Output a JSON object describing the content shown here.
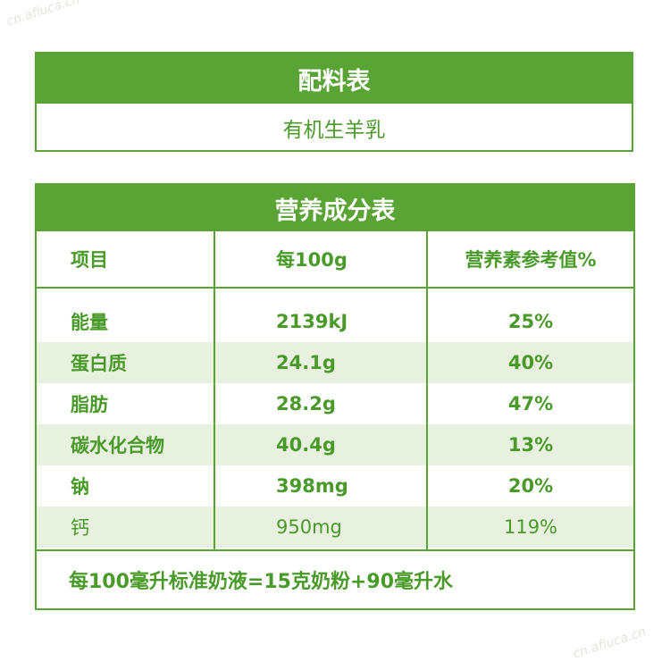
{
  "ingredients": {
    "title": "配料表",
    "content": "有机生羊乳"
  },
  "nutrition": {
    "title": "营养成分表",
    "headers": [
      "项目",
      "每100g",
      "营养素参考值%"
    ],
    "rows": [
      {
        "item": "能量",
        "per100": "2139kJ",
        "nrv": "25%"
      },
      {
        "item": "蛋白质",
        "per100": "24.1g",
        "nrv": "40%"
      },
      {
        "item": "脂肪",
        "per100": "28.2g",
        "nrv": "47%"
      },
      {
        "item": "碳水化合物",
        "per100": "40.4g",
        "nrv": "13%"
      },
      {
        "item": "钠",
        "per100": "398mg",
        "nrv": "20%"
      },
      {
        "item": "钙",
        "per100": "950mg",
        "nrv": "119%"
      }
    ],
    "footer": "每100毫升标准奶液=15克奶粉+90毫升水"
  },
  "watermarks": [
    "cn.afiuca.cn",
    "cn.afiuca.cn"
  ],
  "colors": {
    "accent": "#5aa335",
    "text": "#4a9a2a",
    "row_shade": "#e8f0df"
  }
}
